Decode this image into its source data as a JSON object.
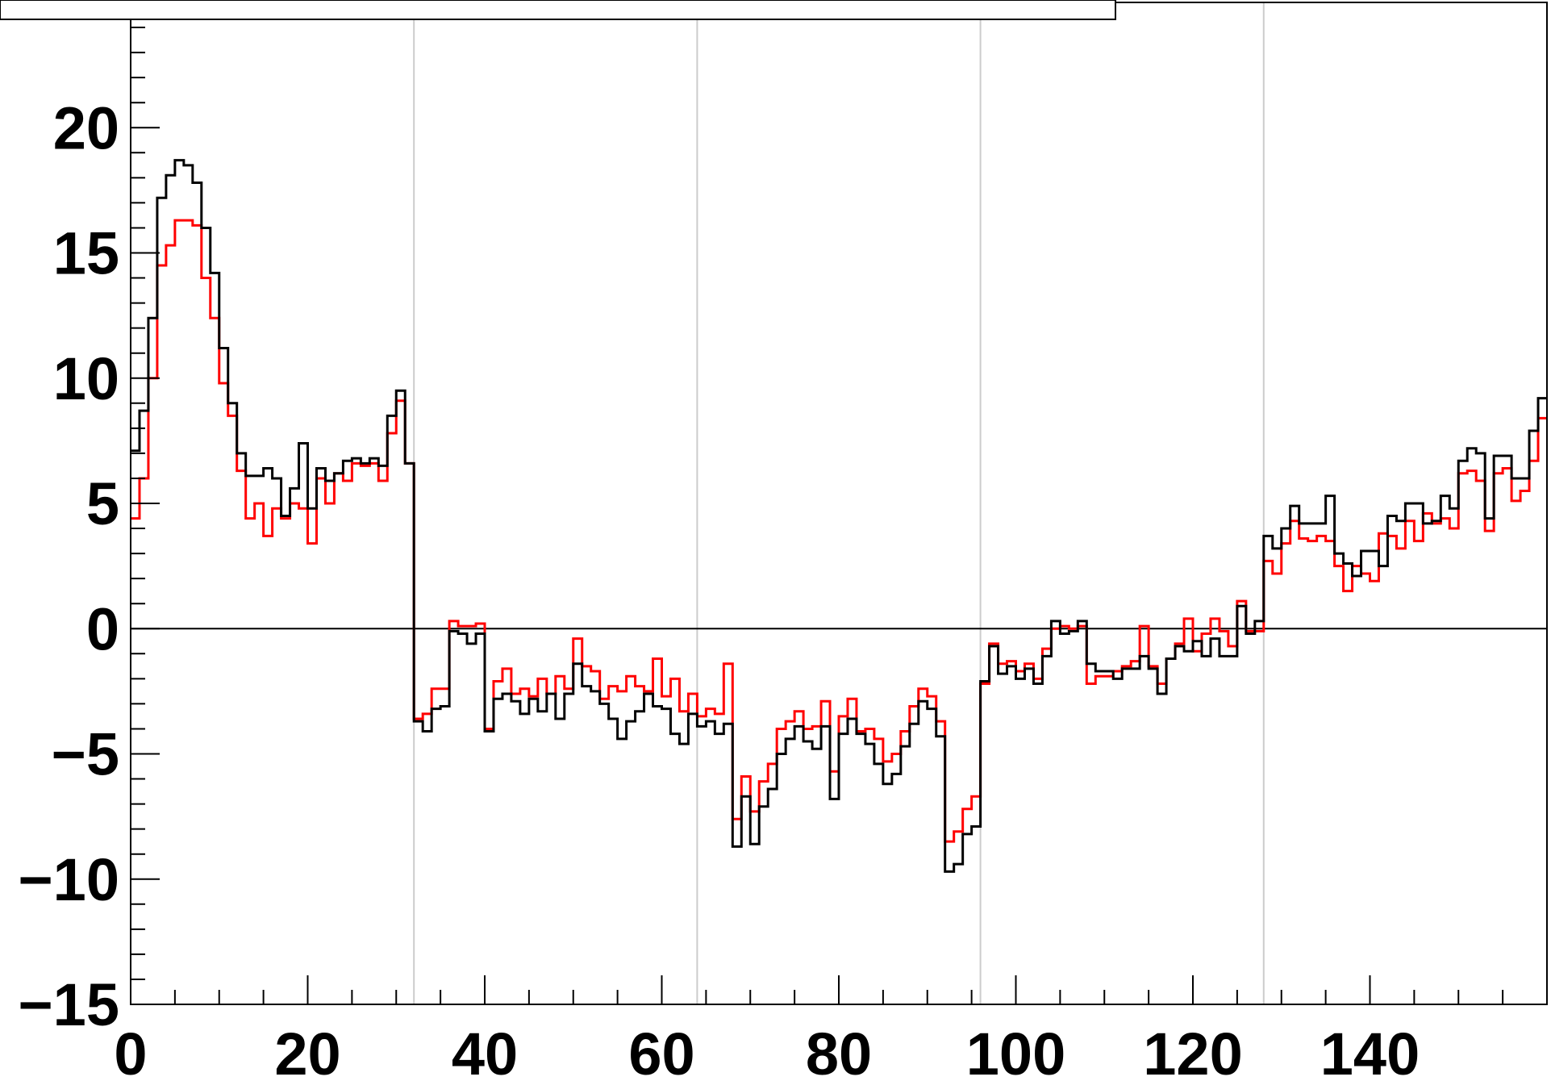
{
  "title": "",
  "chart_data": {
    "type": "line",
    "title": "",
    "xlabel": "",
    "ylabel": "",
    "xlim": [
      0,
      160
    ],
    "ylim": [
      -15,
      25
    ],
    "bin_width": 1,
    "grid_x": [
      32,
      64,
      96,
      128
    ],
    "x_ticks": [
      0,
      20,
      40,
      60,
      80,
      100,
      120,
      140
    ],
    "x_tick_labels": [
      "0",
      "20",
      "40",
      "60",
      "80",
      "100",
      "120",
      "140"
    ],
    "y_ticks": [
      -15,
      -10,
      -5,
      0,
      5,
      10,
      15,
      20
    ],
    "y_tick_labels": [
      "−15",
      "−10",
      "−5",
      "0",
      "5",
      "10",
      "15",
      "20"
    ],
    "colors": {
      "black": "#000000",
      "red": "#ff0000",
      "grid": "#cccccc",
      "zero": "#000000"
    },
    "series": [
      {
        "color": "#000000",
        "values": [
          7.1,
          8.7,
          12.4,
          17.2,
          18.1,
          18.7,
          18.5,
          17.8,
          16.0,
          14.2,
          11.2,
          9.0,
          7.0,
          6.1,
          6.1,
          6.4,
          6.0,
          4.5,
          5.6,
          7.4,
          4.8,
          6.4,
          5.9,
          6.2,
          6.7,
          6.8,
          6.6,
          6.8,
          6.5,
          8.5,
          9.5,
          6.6,
          -3.7,
          -4.1,
          -3.2,
          -3.1,
          -0.1,
          -0.2,
          -0.6,
          -0.2,
          -4.1,
          -2.8,
          -2.6,
          -2.9,
          -3.4,
          -2.8,
          -3.3,
          -2.6,
          -3.6,
          -2.6,
          -1.4,
          -2.3,
          -2.5,
          -3.0,
          -3.6,
          -4.4,
          -3.7,
          -3.3,
          -2.6,
          -3.1,
          -3.2,
          -4.2,
          -4.6,
          -3.4,
          -3.9,
          -3.7,
          -4.2,
          -3.8,
          -8.7,
          -6.7,
          -8.6,
          -7.1,
          -6.4,
          -5.0,
          -4.4,
          -3.9,
          -4.5,
          -4.8,
          -3.9,
          -6.8,
          -4.2,
          -3.6,
          -4.2,
          -4.6,
          -5.4,
          -6.2,
          -5.8,
          -4.7,
          -3.8,
          -2.9,
          -3.2,
          -4.3,
          -9.7,
          -9.4,
          -8.2,
          -7.9,
          -2.1,
          -0.7,
          -1.8,
          -1.5,
          -2.0,
          -1.6,
          -2.2,
          -1.1,
          0.3,
          -0.2,
          -0.1,
          0.3,
          -1.4,
          -1.7,
          -1.7,
          -2.0,
          -1.6,
          -1.6,
          -1.1,
          -1.6,
          -2.6,
          -1.2,
          -0.7,
          -0.9,
          -0.5,
          -1.1,
          -0.4,
          -1.1,
          -1.1,
          0.9,
          -0.2,
          0.3,
          3.7,
          3.2,
          4.0,
          4.9,
          4.2,
          4.2,
          4.2,
          5.3,
          3.0,
          2.6,
          2.1,
          3.1,
          3.1,
          2.5,
          4.5,
          4.3,
          5.0,
          5.0,
          4.2,
          4.3,
          5.3,
          4.8,
          6.7,
          7.2,
          7.0,
          4.4,
          6.9,
          6.9,
          6.0,
          6.0,
          7.9,
          9.2
        ]
      },
      {
        "color": "#ff0000",
        "values": [
          4.4,
          6.0,
          10.0,
          14.5,
          15.3,
          16.3,
          16.3,
          16.1,
          14.0,
          12.4,
          9.8,
          8.5,
          6.3,
          4.4,
          5.0,
          3.7,
          4.8,
          4.4,
          5.0,
          4.8,
          3.4,
          6.0,
          5.0,
          6.2,
          5.9,
          6.6,
          6.5,
          6.6,
          5.9,
          7.8,
          9.1,
          6.6,
          -3.6,
          -3.4,
          -2.4,
          -2.4,
          0.3,
          0.1,
          0.1,
          0.2,
          -4.0,
          -2.1,
          -1.6,
          -2.6,
          -2.4,
          -2.7,
          -2.0,
          -2.6,
          -1.9,
          -2.4,
          -0.4,
          -1.5,
          -1.7,
          -2.8,
          -2.3,
          -2.5,
          -1.9,
          -2.3,
          -2.5,
          -1.2,
          -2.7,
          -2.0,
          -3.3,
          -2.6,
          -3.5,
          -3.2,
          -3.4,
          -1.4,
          -7.6,
          -5.9,
          -7.3,
          -6.1,
          -5.4,
          -4.0,
          -3.7,
          -3.3,
          -4.0,
          -3.9,
          -2.9,
          -5.7,
          -3.5,
          -2.8,
          -4.1,
          -4.0,
          -4.4,
          -5.3,
          -5.0,
          -4.1,
          -3.1,
          -2.4,
          -2.7,
          -3.7,
          -8.5,
          -8.1,
          -7.2,
          -6.7,
          -2.2,
          -0.6,
          -1.4,
          -1.3,
          -1.7,
          -1.4,
          -2.0,
          -0.8,
          0.0,
          0.1,
          0.0,
          0.1,
          -2.2,
          -1.9,
          -1.9,
          -1.7,
          -1.5,
          -1.3,
          0.1,
          -1.5,
          -2.2,
          -1.2,
          -0.6,
          0.4,
          -0.9,
          -0.2,
          0.4,
          -0.1,
          -0.7,
          1.1,
          -0.1,
          -0.1,
          2.7,
          2.2,
          3.4,
          4.3,
          3.6,
          3.5,
          3.7,
          3.5,
          2.5,
          1.5,
          2.5,
          2.2,
          1.9,
          3.8,
          3.7,
          3.2,
          4.3,
          3.5,
          4.6,
          4.2,
          4.4,
          4.0,
          6.2,
          6.3,
          5.9,
          3.9,
          6.2,
          6.4,
          5.1,
          5.5,
          6.7,
          8.4
        ]
      }
    ]
  }
}
